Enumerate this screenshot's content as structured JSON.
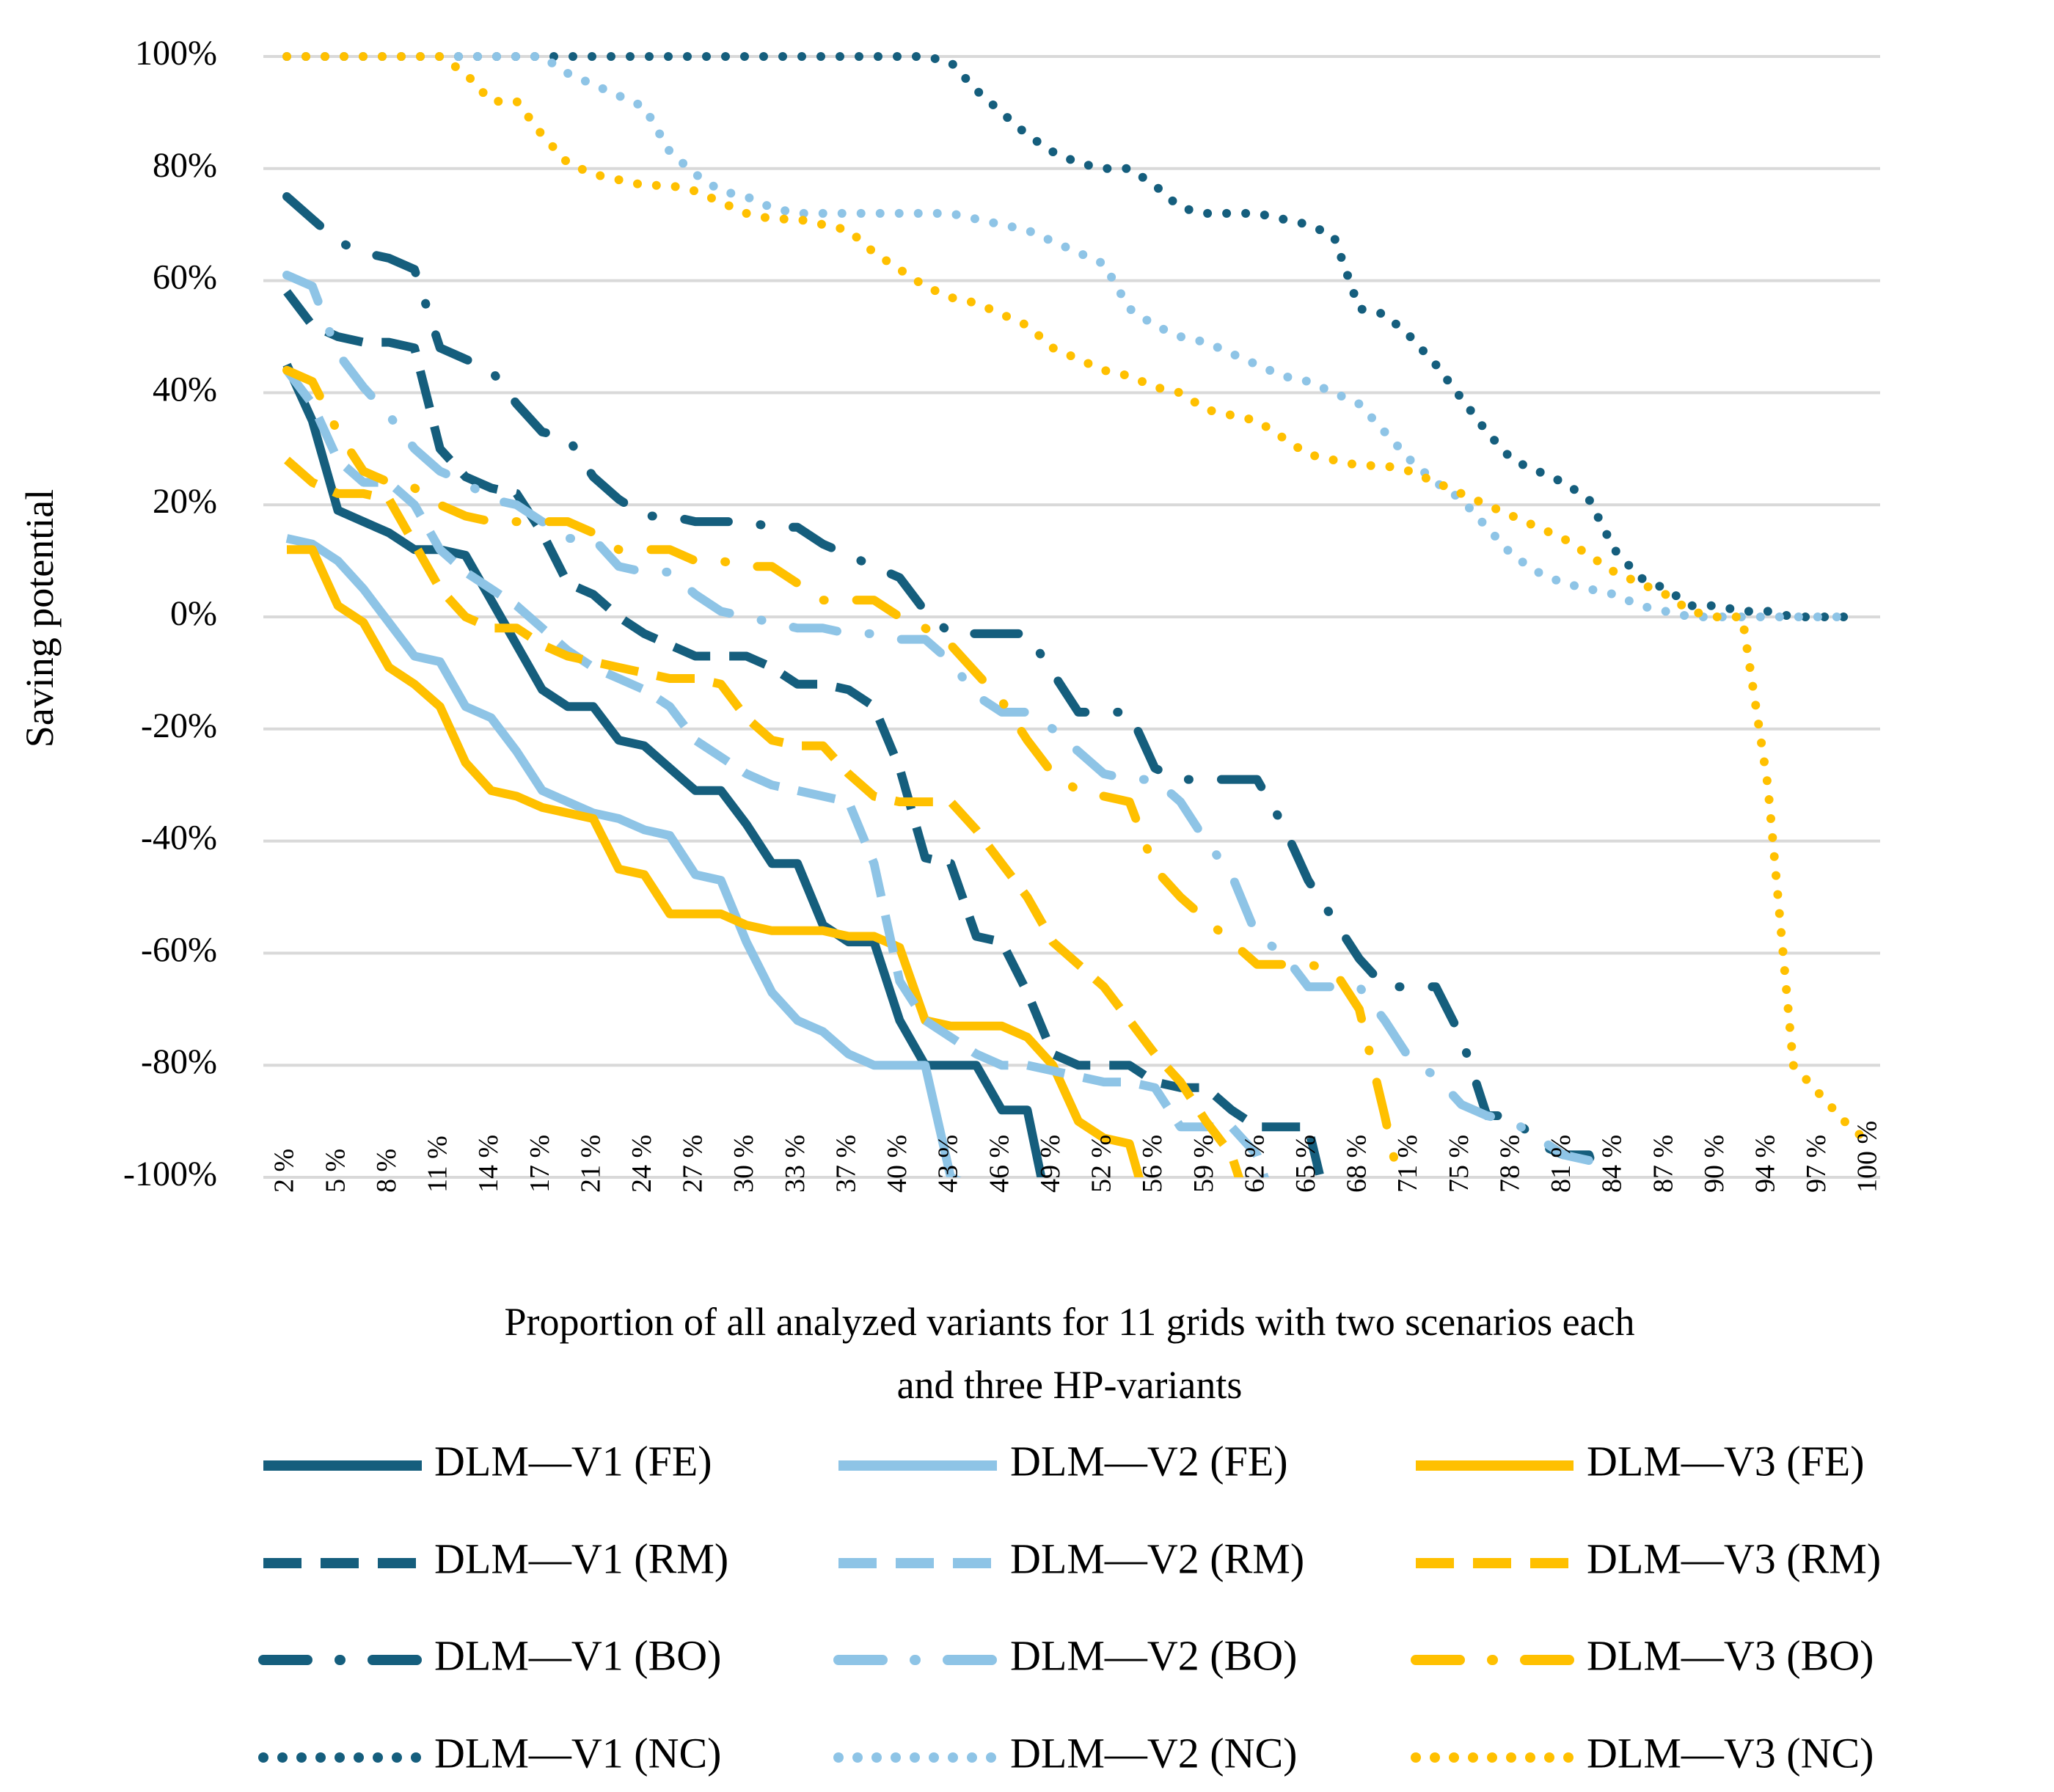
{
  "chart_data": {
    "type": "line",
    "x_label": [
      "Proportion of all analyzed variants for 11 grids with two scenarios each",
      "and three HP-variants"
    ],
    "y_label": "Saving potential",
    "categories": [
      "2 %",
      null,
      "5 %",
      null,
      "8 %",
      null,
      "11 %",
      null,
      "14 %",
      null,
      "17 %",
      null,
      "21 %",
      null,
      "24 %",
      null,
      "27 %",
      null,
      "30 %",
      null,
      "33 %",
      null,
      "37 %",
      null,
      "40 %",
      null,
      "43 %",
      null,
      "46 %",
      null,
      "49 %",
      null,
      "52 %",
      null,
      "56 %",
      null,
      "59 %",
      null,
      "62 %",
      null,
      "65 %",
      null,
      "68 %",
      null,
      "71 %",
      null,
      "75 %",
      null,
      "78 %",
      null,
      "81 %",
      null,
      "84 %",
      null,
      "87 %",
      null,
      "90 %",
      null,
      "94 %",
      null,
      "97 %",
      null,
      "100 %"
    ],
    "ylim": [
      -100,
      100
    ],
    "yticks": [
      {
        "value": -100,
        "label": "-100%"
      },
      {
        "value": -80,
        "label": "-80%"
      },
      {
        "value": -60,
        "label": "-60%"
      },
      {
        "value": -40,
        "label": "-40%"
      },
      {
        "value": -20,
        "label": "-20%"
      },
      {
        "value": 0,
        "label": "0%"
      },
      {
        "value": 20,
        "label": "20%"
      },
      {
        "value": 40,
        "label": "40%"
      },
      {
        "value": 60,
        "label": "60%"
      },
      {
        "value": 80,
        "label": "80%"
      },
      {
        "value": 100,
        "label": "100%"
      }
    ],
    "grid": true,
    "legend": "bottom",
    "series": [
      {
        "name": "DLM—V1 (FE)",
        "color": "#155e7d",
        "style": "solid",
        "values": [
          45,
          35,
          19,
          17,
          15,
          12,
          12,
          11,
          3,
          -5,
          -13,
          -16,
          -16,
          -22,
          -23,
          -27,
          -31,
          -31,
          -37,
          -44,
          -44,
          -55,
          -58,
          -58,
          -72,
          -80,
          -80,
          -80,
          -88,
          -88,
          -110,
          null,
          null,
          null,
          null,
          null,
          null,
          null,
          null,
          null,
          null,
          null,
          null,
          null,
          null,
          null,
          null,
          null,
          null,
          null,
          null,
          null,
          null,
          null,
          null,
          null,
          null,
          null,
          null,
          null,
          null,
          null,
          null
        ]
      },
      {
        "name": "DLM—V2 (FE)",
        "color": "#8ec4e6",
        "style": "solid",
        "values": [
          14,
          13,
          10,
          5,
          -1,
          -7,
          -8,
          -16,
          -18,
          -24,
          -31,
          -33,
          -35,
          -36,
          -38,
          -39,
          -46,
          -47,
          -58,
          -67,
          -72,
          -74,
          -78,
          -80,
          -80,
          -80,
          -100,
          -102,
          null,
          null,
          null,
          null,
          null,
          null,
          null,
          null,
          null,
          null,
          null,
          null,
          null,
          null,
          null,
          null,
          null,
          null,
          null,
          null,
          null,
          null,
          null,
          null,
          null,
          null,
          null,
          null,
          null,
          null,
          null,
          null,
          null,
          null,
          null
        ]
      },
      {
        "name": "DLM—V3 (FE)",
        "color": "#ffc000",
        "style": "solid",
        "values": [
          12,
          12,
          2,
          -1,
          -9,
          -12,
          -16,
          -26,
          -31,
          -32,
          -34,
          -35,
          -36,
          -45,
          -46,
          -53,
          -53,
          -53,
          -55,
          -56,
          -56,
          -56,
          -57,
          -57,
          -59,
          -72,
          -73,
          -73,
          -73,
          -75,
          -80,
          -90,
          -93,
          -94,
          -110,
          null,
          null,
          null,
          null,
          null,
          null,
          null,
          null,
          null,
          null,
          null,
          null,
          null,
          null,
          null,
          null,
          null,
          null,
          null,
          null,
          null,
          null,
          null,
          null,
          null,
          null,
          null,
          null
        ]
      },
      {
        "name": "DLM—V1 (RM)",
        "color": "#155e7d",
        "style": "dashed",
        "values": [
          58,
          52,
          50,
          49,
          49,
          48,
          30,
          25,
          23,
          22,
          15,
          6,
          4,
          0,
          -3,
          -5,
          -7,
          -7,
          -7,
          -9,
          -12,
          -12,
          -13,
          -16,
          -27,
          -43,
          -44,
          -57,
          -58,
          -67,
          -78,
          -80,
          -80,
          -80,
          -83,
          -84,
          -84,
          -88,
          -91,
          -91,
          -91,
          -110,
          null,
          null,
          null,
          null,
          null,
          null,
          null,
          null,
          null,
          null,
          null,
          null,
          null,
          null,
          null,
          null,
          null,
          null,
          null,
          null,
          null
        ]
      },
      {
        "name": "DLM—V2 (RM)",
        "color": "#8ec4e6",
        "style": "dashed",
        "values": [
          44,
          38,
          28,
          24,
          24,
          20,
          12,
          8,
          5,
          2,
          -2,
          -6,
          -9,
          -11,
          -13,
          -16,
          -22,
          -25,
          -28,
          -30,
          -31,
          -32,
          -33,
          -44,
          -65,
          -72,
          -75,
          -78,
          -80,
          -80,
          -81,
          -82,
          -83,
          -83,
          -84,
          -91,
          -91,
          -91,
          -96,
          -110,
          null,
          null,
          null,
          null,
          null,
          null,
          null,
          null,
          null,
          null,
          null,
          null,
          null,
          null,
          null,
          null,
          null,
          null,
          null,
          null,
          null,
          null,
          null
        ]
      },
      {
        "name": "DLM—V3 (RM)",
        "color": "#ffc000",
        "style": "dashed",
        "values": [
          28,
          24,
          22,
          22,
          21,
          13,
          5,
          0,
          -2,
          -2,
          -5,
          -7,
          -8,
          -9,
          -10,
          -11,
          -11,
          -12,
          -18,
          -22,
          -23,
          -23,
          -28,
          -32,
          -33,
          -33,
          -33,
          -38,
          -44,
          -50,
          -58,
          -62,
          -66,
          -72,
          -78,
          -83,
          -90,
          -96,
          -110,
          null,
          null,
          null,
          null,
          null,
          null,
          null,
          null,
          null,
          null,
          null,
          null,
          null,
          null,
          null,
          null,
          null,
          null,
          null,
          null,
          null,
          null,
          null,
          null
        ]
      },
      {
        "name": "DLM—V1 (BO)",
        "color": "#155e7d",
        "style": "dashdot",
        "values": [
          75,
          71,
          67,
          65,
          64,
          62,
          48,
          46,
          44,
          38,
          33,
          32,
          25,
          21,
          18,
          18,
          17,
          17,
          17,
          16,
          16,
          13,
          11,
          9,
          7,
          1,
          -3,
          -3,
          -3,
          -3,
          -10,
          -17,
          -17,
          -17,
          -27,
          -29,
          -29,
          -29,
          -29,
          -37,
          -47,
          -54,
          -61,
          -66,
          -66,
          -66,
          -75,
          -89,
          -89,
          -94,
          -96,
          -96,
          -110,
          null,
          null,
          null,
          null,
          null,
          null,
          null,
          null,
          null,
          null
        ]
      },
      {
        "name": "DLM—V2 (BO)",
        "color": "#8ec4e6",
        "style": "dashdot",
        "values": [
          61,
          59,
          47,
          41,
          36,
          30,
          26,
          24,
          21,
          20,
          17,
          14,
          14,
          9,
          8,
          8,
          4,
          1,
          0,
          -1,
          -2,
          -2,
          -3,
          -3,
          -4,
          -4,
          -8,
          -14,
          -17,
          -17,
          -20,
          -24,
          -28,
          -29,
          -29,
          -33,
          -40,
          -46,
          -57,
          -60,
          -66,
          -66,
          -66,
          -72,
          -79,
          -82,
          -87,
          -89,
          -90,
          -93,
          -96,
          -97,
          null,
          null,
          null,
          null,
          null,
          null,
          null,
          null,
          null,
          null,
          null
        ]
      },
      {
        "name": "DLM—V3 (BO)",
        "color": "#ffc000",
        "style": "dashdot",
        "values": [
          44,
          42,
          33,
          26,
          24,
          23,
          20,
          18,
          17,
          17,
          17,
          17,
          15,
          12,
          12,
          12,
          10,
          10,
          9,
          9,
          6,
          3,
          3,
          3,
          0,
          -2,
          -5,
          -10,
          -15,
          -22,
          -28,
          -31,
          -32,
          -33,
          -45,
          -50,
          -54,
          -58,
          -62,
          -62,
          -62,
          -63,
          -70,
          -89,
          -110,
          null,
          null,
          null,
          null,
          null,
          null,
          null,
          null,
          null,
          null,
          null,
          null,
          null,
          null,
          null,
          null,
          null,
          null
        ]
      },
      {
        "name": "DLM—V1 (NC)",
        "color": "#155e7d",
        "style": "dotted",
        "values": [
          100,
          100,
          100,
          100,
          100,
          100,
          100,
          100,
          100,
          100,
          100,
          100,
          100,
          100,
          100,
          100,
          100,
          100,
          100,
          100,
          100,
          100,
          100,
          100,
          100,
          100,
          99,
          94,
          90,
          86,
          83,
          81,
          80,
          80,
          77,
          73,
          72,
          72,
          72,
          71,
          70,
          68,
          55,
          54,
          50,
          45,
          39,
          33,
          28,
          26,
          24,
          21,
          12,
          7,
          5,
          2,
          2,
          1,
          1,
          0,
          0,
          0,
          null
        ]
      },
      {
        "name": "DLM—V2 (NC)",
        "color": "#8ec4e6",
        "style": "dotted",
        "values": [
          100,
          100,
          100,
          100,
          100,
          100,
          100,
          100,
          100,
          100,
          100,
          97,
          95,
          93,
          91,
          83,
          79,
          76,
          75,
          73,
          72,
          72,
          72,
          72,
          72,
          72,
          72,
          71,
          70,
          69,
          67,
          65,
          63,
          55,
          52,
          50,
          49,
          47,
          45,
          43,
          42,
          40,
          38,
          33,
          28,
          24,
          21,
          16,
          11,
          8,
          6,
          5,
          4,
          2,
          1,
          0,
          0,
          0,
          0,
          0,
          0,
          0,
          null
        ]
      },
      {
        "name": "DLM—V3 (NC)",
        "color": "#ffc000",
        "style": "dotted",
        "values": [
          100,
          100,
          100,
          100,
          100,
          100,
          100,
          97,
          92,
          92,
          86,
          81,
          79,
          78,
          77,
          77,
          76,
          74,
          72,
          71,
          71,
          70,
          69,
          65,
          62,
          59,
          57,
          56,
          54,
          52,
          48,
          46,
          44,
          43,
          41,
          40,
          37,
          36,
          35,
          32,
          29,
          28,
          27,
          27,
          26,
          24,
          22,
          20,
          18,
          16,
          14,
          11,
          8,
          6,
          4,
          1,
          0,
          0,
          -30,
          -80,
          -85,
          -90,
          -94
        ]
      }
    ]
  }
}
